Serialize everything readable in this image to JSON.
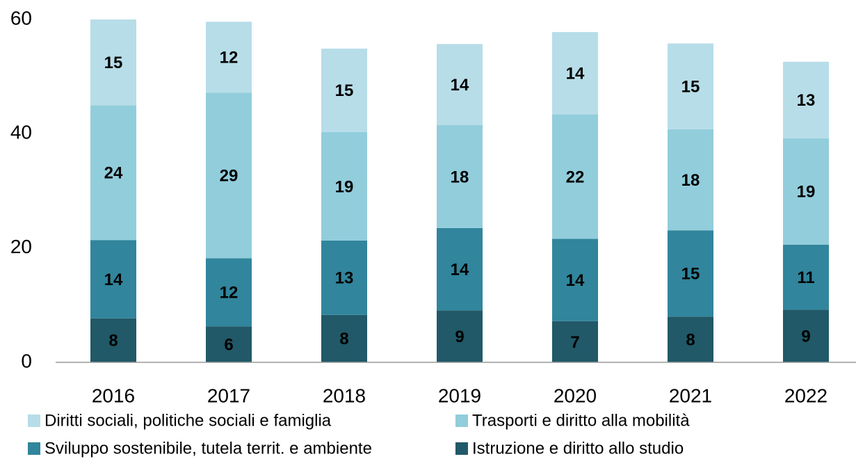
{
  "chart_data": {
    "type": "stacked_bar",
    "categories": [
      "2016",
      "2017",
      "2018",
      "2019",
      "2020",
      "2021",
      "2022"
    ],
    "series": [
      {
        "name": "Istruzione e diritto allo studio",
        "color": "#215968",
        "values": [
          7.7,
          6.3,
          8.3,
          9.1,
          7.2,
          8.0,
          9.2
        ],
        "value_labels": [
          "8",
          "6",
          "8",
          "9",
          "7",
          "8",
          "9"
        ]
      },
      {
        "name": "Sviluppo sostenibile, tutela territ. e ambiente",
        "color": "#31859c",
        "values": [
          13.7,
          11.9,
          13.0,
          14.4,
          14.4,
          15.1,
          11.4
        ],
        "value_labels": [
          "14",
          "12",
          "13",
          "14",
          "14",
          "15",
          "11"
        ]
      },
      {
        "name": "Trasporti e diritto alla mobilità",
        "color": "#92cddc",
        "values": [
          23.6,
          29.0,
          19.0,
          18.0,
          21.8,
          17.7,
          18.6
        ],
        "value_labels": [
          "24",
          "29",
          "19",
          "18",
          "22",
          "18",
          "19"
        ]
      },
      {
        "name": "Diritti sociali, politiche sociali e famiglia",
        "color": "#b7dde8",
        "values": [
          15.0,
          12.4,
          14.6,
          14.2,
          14.4,
          15.0,
          13.4
        ],
        "value_labels": [
          "15",
          "12",
          "15",
          "14",
          "14",
          "15",
          "13"
        ]
      }
    ],
    "ylim": [
      0,
      60
    ],
    "yticks": [
      0,
      20,
      40,
      60
    ],
    "grid": false
  }
}
